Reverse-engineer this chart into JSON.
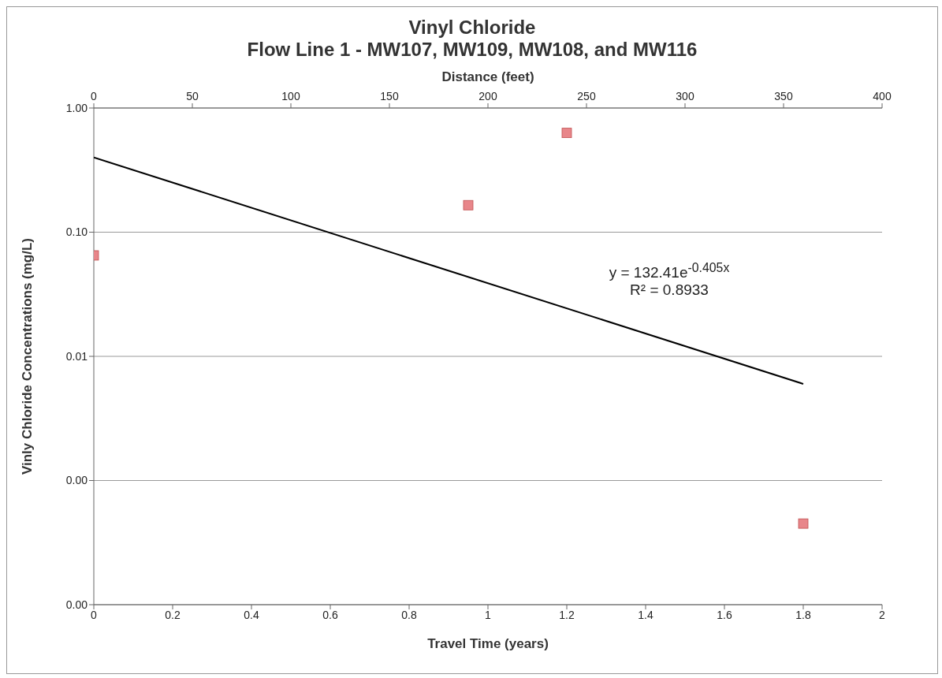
{
  "chart_data": {
    "type": "scatter",
    "title": "Vinyl Chloride",
    "subtitle": "Flow Line 1 - MW107, MW109, MW108, and MW116",
    "xlabel": "Travel Time (years)",
    "x2label": "Distance (feet)",
    "ylabel": "Vinly Chloride Concentrations (mg/L)",
    "xlim": [
      0,
      2
    ],
    "xticks": [
      0,
      0.2,
      0.4,
      0.6,
      0.8,
      1,
      1.2,
      1.4,
      1.6,
      1.8,
      2
    ],
    "x2lim": [
      0,
      400
    ],
    "x2ticks": [
      0,
      50,
      100,
      150,
      200,
      250,
      300,
      350,
      400
    ],
    "ylim": [
      0.0001,
      1
    ],
    "yticks": [
      {
        "value": 0.0001,
        "label": "0.00"
      },
      {
        "value": 0.001,
        "label": "0.00"
      },
      {
        "value": 0.01,
        "label": "0.01"
      },
      {
        "value": 0.1,
        "label": "0.10"
      },
      {
        "value": 1,
        "label": "1.00"
      }
    ],
    "log": "y",
    "grid": "y",
    "marker": "square",
    "series": [
      {
        "type": "scatter",
        "color": "#e8868a",
        "x": [
          0,
          0.95,
          1.2,
          1.8
        ],
        "values": [
          0.065,
          0.165,
          0.63,
          0.00045
        ]
      },
      {
        "type": "line",
        "color": "#000000",
        "marker": "none",
        "x": [
          0,
          1.8
        ],
        "values": [
          0.4,
          0.006
        ]
      }
    ],
    "annotations": [
      "y = 132.41e$^{-0.405x}$",
      "R² = 0.8933"
    ]
  }
}
